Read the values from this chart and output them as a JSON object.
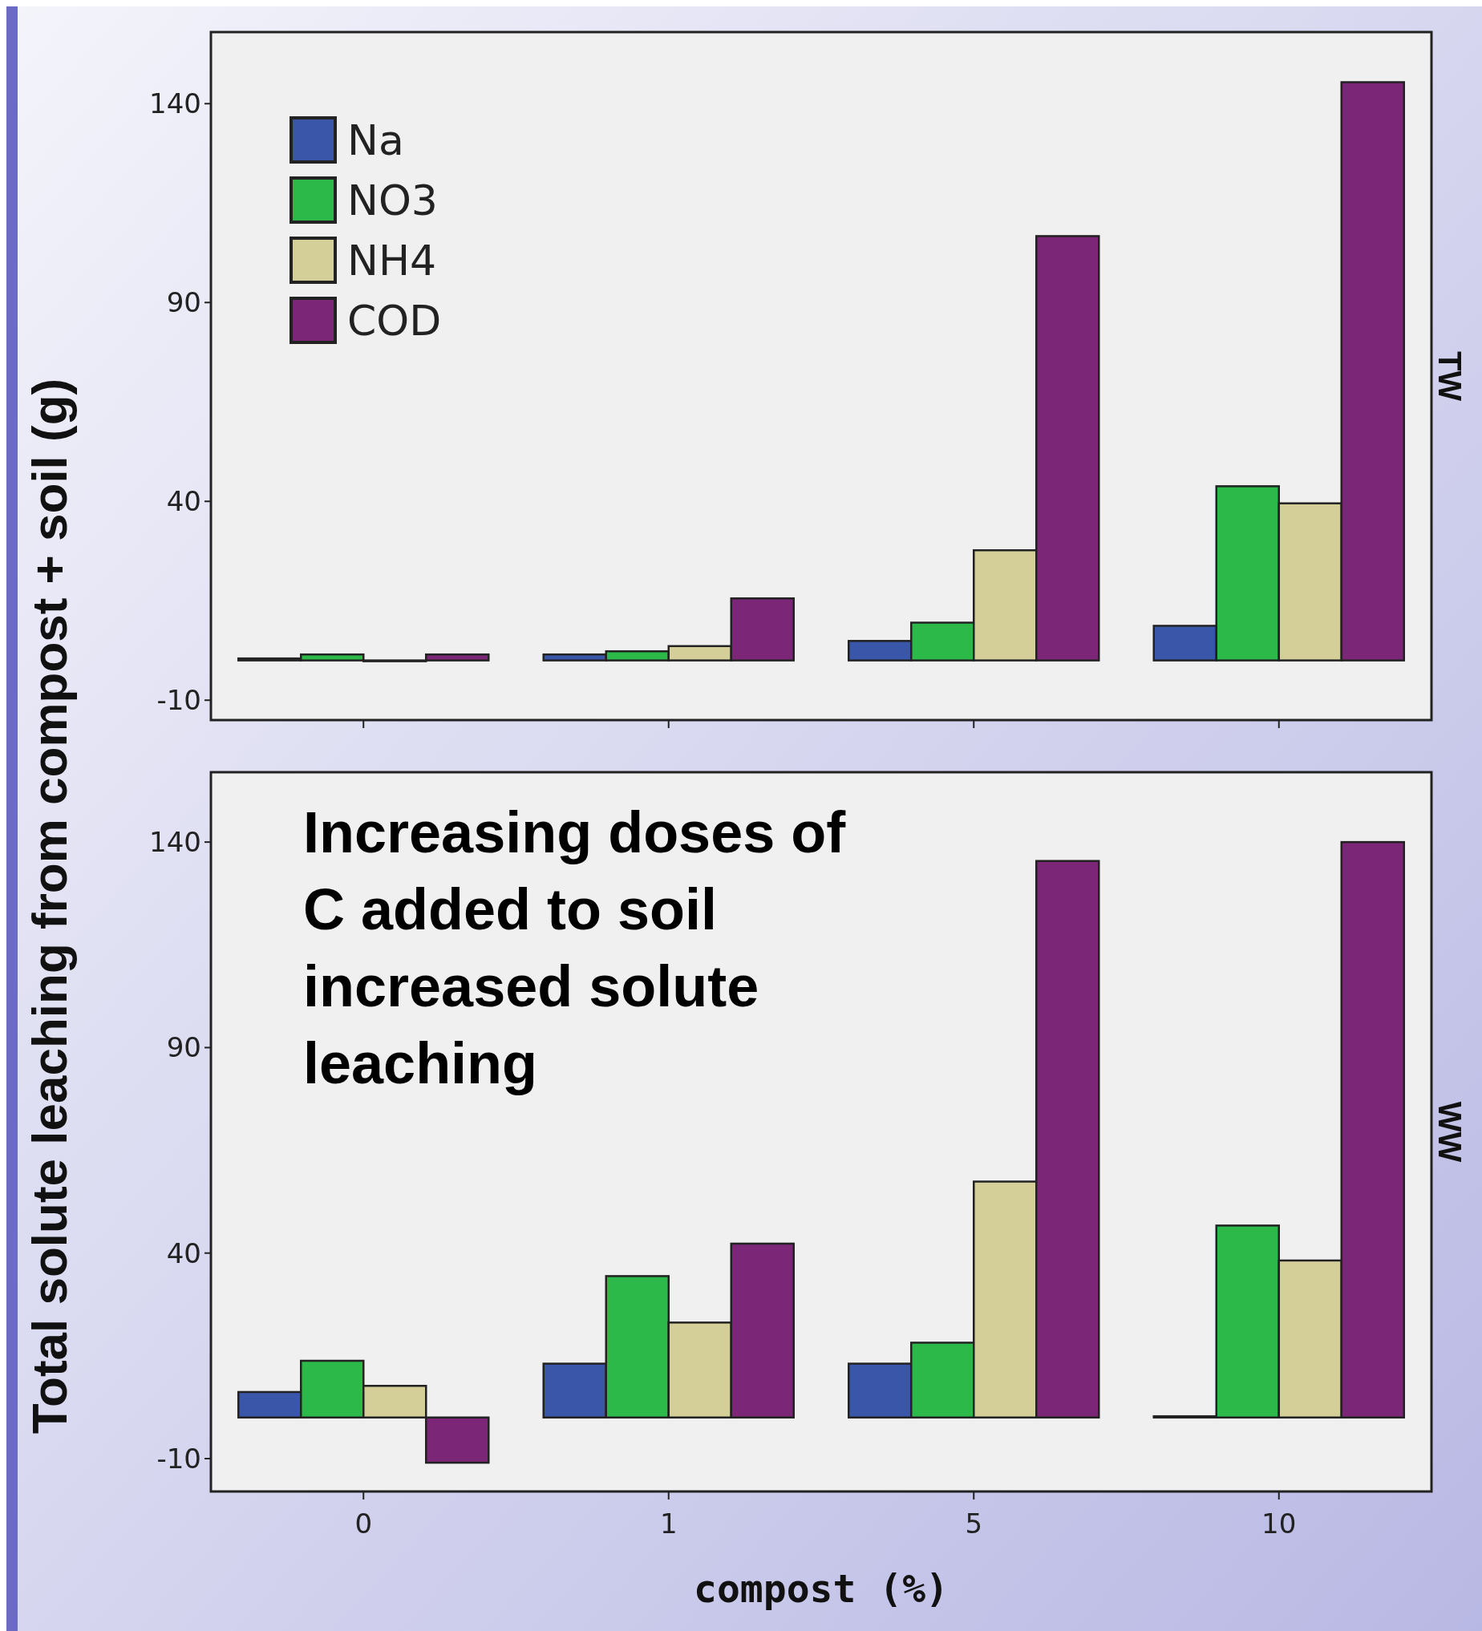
{
  "chart_data": [
    {
      "type": "bar",
      "title": "TW",
      "ylabel": "Total solute leaching from compost + soil (g)",
      "categories": [
        "0",
        "1",
        "5",
        "10"
      ],
      "series": [
        {
          "name": "Na",
          "color": "#3a56a8",
          "values": [
            0.5,
            1.5,
            4.9,
            8.7
          ]
        },
        {
          "name": "NO3",
          "color": "#2db84a",
          "values": [
            1.5,
            2.3,
            9.5,
            43.8
          ]
        },
        {
          "name": "NH4",
          "color": "#d4cf98",
          "values": [
            0,
            3.6,
            27.7,
            39.5
          ]
        },
        {
          "name": "COD",
          "color": "#7b2677",
          "values": [
            1.5,
            15.6,
            106.7,
            145.4
          ]
        }
      ],
      "ylim": [
        -15,
        158
      ],
      "yticks": [
        -10,
        40,
        90,
        140
      ],
      "legend": "top left",
      "tick_labels": "y"
    },
    {
      "type": "bar",
      "title": "WW",
      "xlabel": "compost (%)",
      "categories": [
        "0",
        "1",
        "5",
        "10"
      ],
      "series": [
        {
          "color": "#3a56a8",
          "values": [
            6.2,
            13.1,
            13.1,
            0.3
          ]
        },
        {
          "color": "#2db84a",
          "values": [
            13.8,
            34.4,
            18.2,
            46.7
          ]
        },
        {
          "color": "#d4cf98",
          "values": [
            7.7,
            23.1,
            57.4,
            38.2
          ]
        },
        {
          "color": "#7b2677",
          "values": [
            -11,
            42.3,
            135.4,
            140
          ]
        }
      ],
      "ylim": [
        -18,
        157
      ],
      "yticks": [
        -10,
        40,
        90,
        140
      ],
      "annotations": [
        "Increasing doses of C added to soil increased solute leaching"
      ]
    }
  ]
}
